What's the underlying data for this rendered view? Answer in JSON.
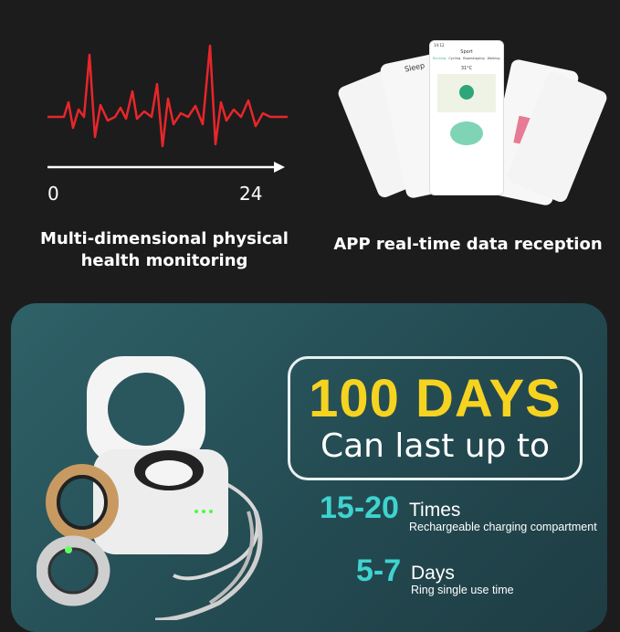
{
  "left_panel": {
    "axis_start": "0",
    "axis_end": "24",
    "caption_line1": "Multi-dimensional physical",
    "caption_line2": "health monitoring",
    "heartbeat_color": "#e8262b"
  },
  "right_panel": {
    "caption": "APP real-time data reception",
    "phone_center": {
      "time": "14:12",
      "title": "Sport",
      "tabs": [
        "Running",
        "Cycling",
        "Ropeskipping",
        "Walking"
      ],
      "temperature": "31°C"
    },
    "phone_left": {
      "title": "Sleep"
    }
  },
  "card": {
    "headline": "100 DAYS",
    "subheadline": "Can last up to",
    "stat1": {
      "value": "15-20",
      "unit": "Times",
      "desc": "Rechargeable charging compartment"
    },
    "stat2": {
      "value": "5-7",
      "unit": "Days",
      "desc": "Ring single use time"
    },
    "colors": {
      "headline": "#f6d320",
      "stat": "#3fd3cf",
      "card_bg": "#2a565d"
    }
  }
}
